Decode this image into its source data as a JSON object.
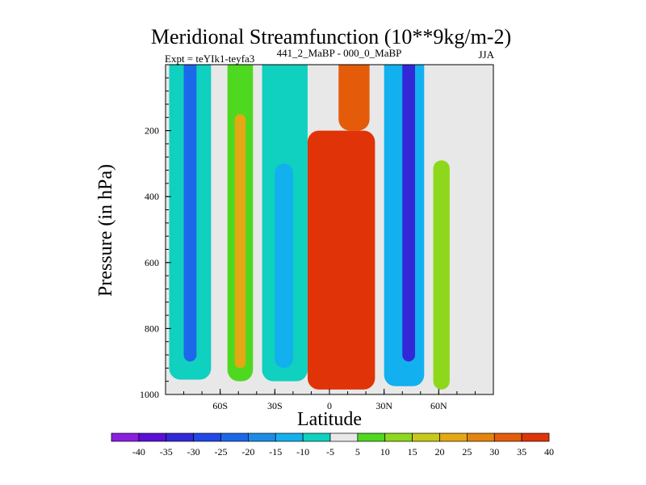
{
  "chart_data": {
    "type": "heatmap",
    "title": "Meridional Streamfunction (10**9kg/m-2)",
    "subtitle_left": "Expt = teYIk1-teyfa3",
    "subtitle_center": "441_2_MaBP - 000_0_MaBP",
    "subtitle_right": "JJA",
    "xlabel": "Latitude",
    "ylabel": "Pressure (in hPa)",
    "xlim": [
      -90,
      90
    ],
    "ylim": [
      1000,
      0
    ],
    "x_ticks": [
      {
        "value": -60,
        "label": "60S"
      },
      {
        "value": -30,
        "label": "30S"
      },
      {
        "value": 0,
        "label": "0"
      },
      {
        "value": 30,
        "label": "30N"
      },
      {
        "value": 60,
        "label": "60N"
      }
    ],
    "y_ticks": [
      {
        "value": 200,
        "label": "200"
      },
      {
        "value": 400,
        "label": "400"
      },
      {
        "value": 600,
        "label": "600"
      },
      {
        "value": 800,
        "label": "800"
      },
      {
        "value": 1000,
        "label": "1000"
      }
    ],
    "colorbar": {
      "labels": [
        "-40",
        "-35",
        "-30",
        "-25",
        "-20",
        "-15",
        "-10",
        "-5",
        "5",
        "10",
        "15",
        "20",
        "25",
        "30",
        "35",
        "40"
      ],
      "levels": [
        -45,
        -40,
        -35,
        -30,
        -25,
        -20,
        -15,
        -10,
        -5,
        5,
        10,
        15,
        20,
        25,
        30,
        35,
        40
      ],
      "colors": [
        "#8a1fe0",
        "#5a10d8",
        "#3228d8",
        "#2048e8",
        "#1c68ea",
        "#1c8ce6",
        "#12b0ee",
        "#10d0c0",
        "#e8e8e8",
        "#4ed820",
        "#8ed81c",
        "#c6c81a",
        "#e4a814",
        "#e4840e",
        "#e45c0a",
        "#e03408"
      ]
    },
    "bands": [
      {
        "name": "southern-cyan-cell",
        "lat_from": -88,
        "lat_to": -65,
        "p_top": 0,
        "p_bottom": 955,
        "value": -7
      },
      {
        "name": "southern-blue-core",
        "lat_from": -80,
        "lat_to": -73,
        "p_top": 0,
        "p_bottom": 900,
        "value": -22
      },
      {
        "name": "southern-green-cell",
        "lat_from": -56,
        "lat_to": -42,
        "p_top": 0,
        "p_bottom": 960,
        "value": 8
      },
      {
        "name": "southern-yellow-core",
        "lat_from": -52,
        "lat_to": -46,
        "p_top": 150,
        "p_bottom": 920,
        "value": 20
      },
      {
        "name": "subtropical-cyan-cell",
        "lat_from": -37,
        "lat_to": -12,
        "p_top": 0,
        "p_bottom": 960,
        "value": -7
      },
      {
        "name": "subtropical-blue-core",
        "lat_from": -30,
        "lat_to": -20,
        "p_top": 300,
        "p_bottom": 920,
        "value": -14
      },
      {
        "name": "hadley-red-cell",
        "lat_from": -12,
        "lat_to": 25,
        "p_top": 200,
        "p_bottom": 985,
        "value": 45
      },
      {
        "name": "hadley-upper-branch",
        "lat_from": 5,
        "lat_to": 22,
        "p_top": 0,
        "p_bottom": 200,
        "value": 32
      },
      {
        "name": "northern-blue-cell",
        "lat_from": 30,
        "lat_to": 52,
        "p_top": 0,
        "p_bottom": 975,
        "value": -12
      },
      {
        "name": "northern-violet-core",
        "lat_from": 40,
        "lat_to": 47,
        "p_top": 0,
        "p_bottom": 900,
        "value": -35
      },
      {
        "name": "polar-green-cell",
        "lat_from": 57,
        "lat_to": 66,
        "p_top": 290,
        "p_bottom": 985,
        "value": 10
      }
    ]
  }
}
